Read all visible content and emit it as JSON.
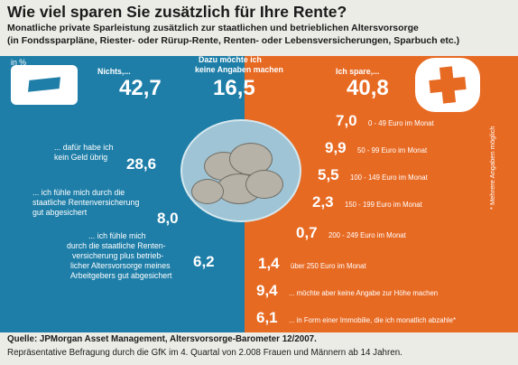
{
  "header": {
    "title": "Wie viel sparen Sie zusätzlich für Ihre Rente?",
    "subtitle_line1": "Monatliche private Sparleistung zusätzlich zur staatlichen und betrieblichen Altersvorsorge",
    "subtitle_line2": "(in Fondssparpläne, Riester- oder Rürup-Rente, Renten- oder Lebensversicherungen, Sparbuch etc.)"
  },
  "unit": "in %",
  "side_note": "* Mehrere Angaben möglich",
  "chart_data": {
    "type": "table",
    "unit": "in %",
    "top_categories": [
      {
        "label": "Nichts,...",
        "value": 42.7,
        "value_text": "42,7"
      },
      {
        "label_line1": "Dazu möchte ich",
        "label_line2": "keine Angaben machen",
        "value": 16.5,
        "value_text": "16,5"
      },
      {
        "label": "Ich spare,...",
        "value": 40.8,
        "value_text": "40,8"
      }
    ],
    "nothing_reasons": [
      {
        "lines": [
          "... dafür habe ich",
          "kein Geld übrig"
        ],
        "value": 28.6,
        "value_text": "28,6"
      },
      {
        "lines": [
          "... ich fühle mich durch die",
          "staatliche Rentenversicherung",
          "gut abgesichert"
        ],
        "value": 8.0,
        "value_text": "8,0"
      },
      {
        "lines": [
          "... ich fühle mich",
          "durch die staatliche Renten-",
          "versicherung plus betrieb-",
          "licher Altersvorsorge meines",
          "Arbeitgebers gut abgesichert"
        ],
        "value": 6.2,
        "value_text": "6,2"
      }
    ],
    "saving_amounts": [
      {
        "value": 7.0,
        "value_text": "7,0",
        "label": "0 - 49 Euro im Monat"
      },
      {
        "value": 9.9,
        "value_text": "9,9",
        "label": "50 - 99 Euro im Monat"
      },
      {
        "value": 5.5,
        "value_text": "5,5",
        "label": "100 - 149 Euro im Monat"
      },
      {
        "value": 2.3,
        "value_text": "2,3",
        "label": "150 - 199 Euro im Monat"
      },
      {
        "value": 0.7,
        "value_text": "0,7",
        "label": "200 - 249 Euro im Monat"
      },
      {
        "value": 1.4,
        "value_text": "1,4",
        "label": "über 250 Euro im Monat"
      },
      {
        "value": 9.4,
        "value_text": "9,4",
        "label": "... möchte aber keine Angabe zur Höhe machen"
      },
      {
        "value": 6.1,
        "value_text": "6,1",
        "label": "... in Form einer Immobilie, die ich monatlich abzahle*"
      }
    ]
  },
  "footer": {
    "source": "Quelle: JPMorgan Asset Management, Altersvorsorge-Barometer 12/2007.",
    "note": "Repräsentative Befragung durch die GfK im 4. Quartal von 2.008 Frauen und Männern ab 14 Jahren."
  },
  "colors": {
    "blue": "#1e7ea8",
    "orange": "#e76a23",
    "background": "#ecece7"
  },
  "icons": [
    "minus-icon",
    "plus-icon",
    "coin-stack-icon"
  ]
}
